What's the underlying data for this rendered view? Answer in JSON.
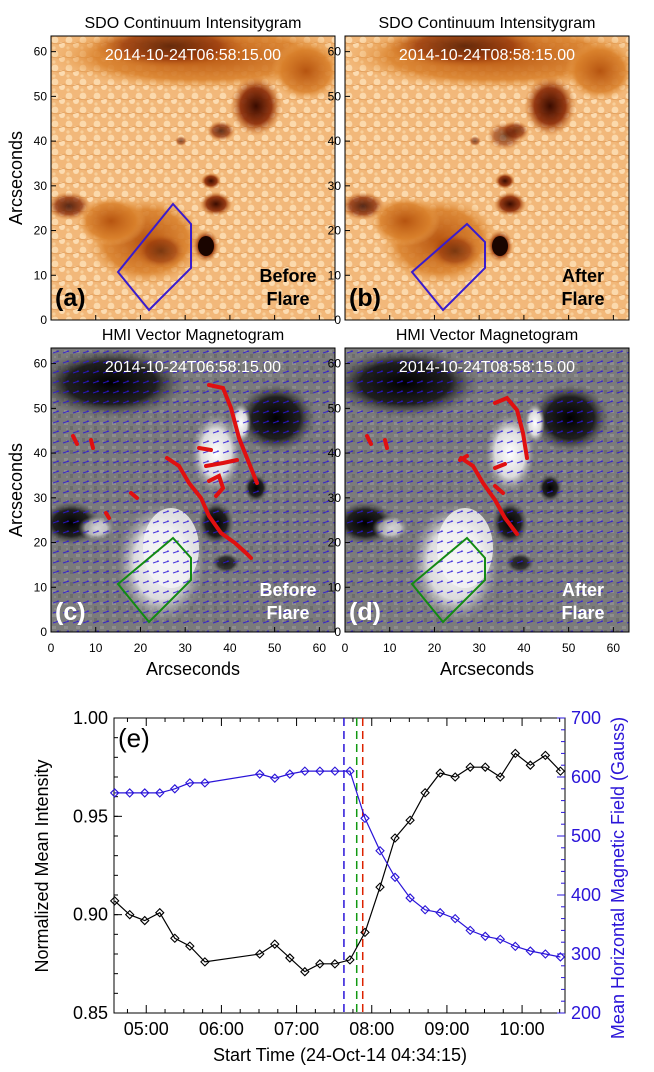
{
  "panels": {
    "a": {
      "title": "SDO Continuum Intensitygram",
      "timestamp": "2014-10-24T06:58:15.00",
      "label": "(a)",
      "note_line1": "Before",
      "note_line2": "Flare"
    },
    "b": {
      "title": "SDO Continuum Intensitygram",
      "timestamp": "2014-10-24T08:58:15.00",
      "label": "(b)",
      "note_line1": "After",
      "note_line2": "Flare"
    },
    "c": {
      "title": "HMI Vector Magnetogram",
      "timestamp": "2014-10-24T06:58:15.00",
      "label": "(c)",
      "note_line1": "Before",
      "note_line2": "Flare"
    },
    "d": {
      "title": "HMI Vector Magnetogram",
      "timestamp": "2014-10-24T08:58:15.00",
      "label": "(d)",
      "note_line1": "After",
      "note_line2": "Flare"
    }
  },
  "image_axes": {
    "ylabel": "Arcseconds",
    "xlabel": "Arcseconds",
    "y_ticks": [
      "0",
      "10",
      "20",
      "30",
      "40",
      "50",
      "60"
    ],
    "x_ticks": [
      "0",
      "10",
      "20",
      "30",
      "40",
      "50",
      "60"
    ]
  },
  "chart_data": {
    "type": "line",
    "panel_label": "(e)",
    "xlabel": "Start Time (24-Oct-14 04:34:15)",
    "ylabel_left": "Normalized Mean Intensity",
    "ylabel_right": "Mean Horizontal Magnetic Field (Gauss)",
    "x_ticks": [
      "05:00",
      "06:00",
      "07:00",
      "08:00",
      "09:00",
      "10:00"
    ],
    "x_tick_hours": [
      5,
      6,
      7,
      8,
      9,
      10
    ],
    "xlim": [
      4.571,
      10.571
    ],
    "left_ticks": [
      "0.85",
      "0.90",
      "0.95",
      "1.00"
    ],
    "left_tick_values": [
      0.85,
      0.9,
      0.95,
      1.0
    ],
    "ylim_left": [
      0.85,
      1.0
    ],
    "right_ticks": [
      "200",
      "300",
      "400",
      "500",
      "600",
      "700"
    ],
    "right_tick_values": [
      200,
      300,
      400,
      500,
      600,
      700
    ],
    "ylim_right": [
      200,
      700
    ],
    "vlines": [
      {
        "x": 7.63,
        "color": "#2a14d8"
      },
      {
        "x": 7.8,
        "color": "#119911"
      },
      {
        "x": 7.88,
        "color": "#dd2200"
      }
    ],
    "series": [
      {
        "name": "Normalized Mean Intensity",
        "axis": "left",
        "color": "#000000",
        "x": [
          4.58,
          4.78,
          4.98,
          5.18,
          5.38,
          5.58,
          5.78,
          6.51,
          6.71,
          6.91,
          7.11,
          7.31,
          7.51,
          7.71,
          7.91,
          8.11,
          8.31,
          8.51,
          8.71,
          8.91,
          9.11,
          9.31,
          9.51,
          9.71,
          9.91,
          10.11,
          10.31,
          10.51
        ],
        "values": [
          0.907,
          0.9,
          0.897,
          0.901,
          0.888,
          0.884,
          0.876,
          0.88,
          0.885,
          0.878,
          0.871,
          0.875,
          0.875,
          0.877,
          0.891,
          0.914,
          0.939,
          0.948,
          0.962,
          0.972,
          0.97,
          0.975,
          0.975,
          0.97,
          0.982,
          0.976,
          0.981,
          0.973
        ]
      },
      {
        "name": "Mean Horizontal Magnetic Field",
        "axis": "right",
        "color": "#2a14d8",
        "x": [
          4.58,
          4.78,
          4.98,
          5.18,
          5.38,
          5.58,
          5.78,
          6.51,
          6.71,
          6.91,
          7.11,
          7.31,
          7.51,
          7.71,
          7.91,
          8.11,
          8.31,
          8.51,
          8.71,
          8.91,
          9.11,
          9.31,
          9.51,
          9.71,
          9.91,
          10.11,
          10.31,
          10.51
        ],
        "values": [
          573,
          573,
          573,
          573,
          580,
          590,
          590,
          605,
          598,
          605,
          610,
          610,
          610,
          610,
          530,
          475,
          430,
          395,
          375,
          370,
          360,
          340,
          330,
          325,
          313,
          305,
          300,
          295
        ]
      }
    ]
  }
}
